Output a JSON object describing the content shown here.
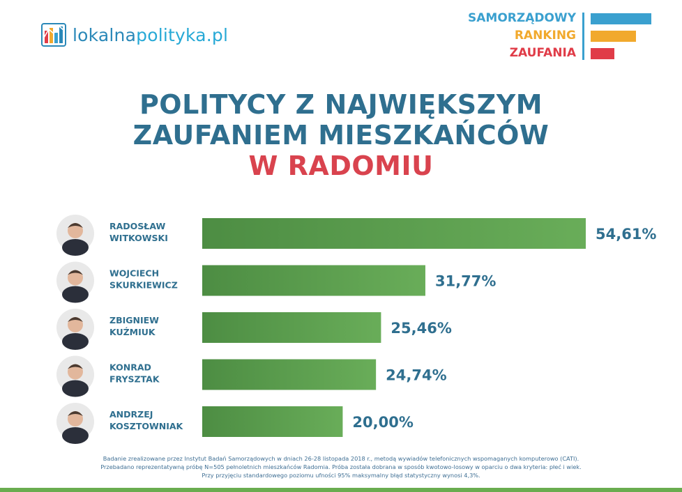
{
  "brand": {
    "name_part1": "lokalna",
    "name_part2": "polityka.pl"
  },
  "ranking_badge": {
    "word1": "SAMORZĄDOWY",
    "word2": "RANKING",
    "word3": "ZAUFANIA",
    "colors": [
      "#3aa0cf",
      "#f1a92d",
      "#e03c48"
    ]
  },
  "chart_data": {
    "type": "bar",
    "orientation": "horizontal",
    "title_line1": "POLITYCY Z NAJWIĘKSZYM",
    "title_line2": "ZAUFANIEM MIESZKAŃCÓW",
    "title_line3": "W RADOMIU",
    "categories": [
      [
        "RADOSŁAW",
        "WITKOWSKI"
      ],
      [
        "WOJCIECH",
        "SKURKIEWICZ"
      ],
      [
        "ZBIGNIEW",
        "KUŹMIUK"
      ],
      [
        "KONRAD",
        "FRYSZTAK"
      ],
      [
        "ANDRZEJ",
        "KOSZTOWNIAK"
      ]
    ],
    "values": [
      54.61,
      31.77,
      25.46,
      24.74,
      20.0
    ],
    "value_labels": [
      "54,61%",
      "31,77%",
      "25,46%",
      "24,74%",
      "20,00%"
    ],
    "bar_color": "#5e9e4f",
    "label_color": "#2f6f8f",
    "unit": "%"
  },
  "footer": {
    "line1": "Badanie zrealizowane przez Instytut Badań Samorządowych w dniach 26-28 listopada 2018 r., metodą wywiadów telefonicznych wspomaganych komputerowo (CATI).",
    "line2": "Przebadano reprezentatywną próbę N=505 pełnoletnich mieszkańców Radomia. Próba została dobrana w sposób kwotowo-losowy w oparciu o dwa kryteria: płeć i wiek.",
    "line3": "Przy przyjęciu standardowego poziomu ufności 95% maksymalny błąd statystyczny wynosi 4,3%."
  }
}
